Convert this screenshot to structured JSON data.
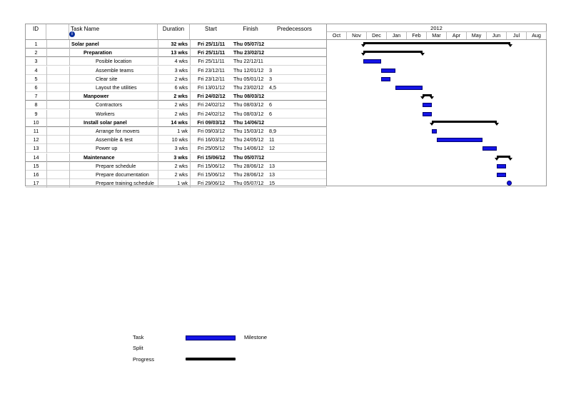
{
  "table": {
    "headers": {
      "id": "ID",
      "task_name": "Task Name",
      "duration": "Duration",
      "start": "Start",
      "finish": "Finish",
      "predecessors": "Predecessors"
    },
    "rows": [
      {
        "id": "1",
        "name": "Solar panel",
        "duration": "32 wks",
        "start": "Fri 25/11/11",
        "finish": "Thu 05/07/12",
        "pred": "",
        "summary": true,
        "indent": 0
      },
      {
        "id": "2",
        "name": "Preparation",
        "duration": "13 wks",
        "start": "Fri 25/11/11",
        "finish": "Thu 23/02/12",
        "pred": "",
        "summary": true,
        "indent": 1
      },
      {
        "id": "3",
        "name": "Posible location",
        "duration": "4 wks",
        "start": "Fri 25/11/11",
        "finish": "Thu 22/12/11",
        "pred": "",
        "summary": false,
        "indent": 2
      },
      {
        "id": "4",
        "name": "Assemble teams",
        "duration": "3 wks",
        "start": "Fri 23/12/11",
        "finish": "Thu 12/01/12",
        "pred": "3",
        "summary": false,
        "indent": 2
      },
      {
        "id": "5",
        "name": "Clear site",
        "duration": "2 wks",
        "start": "Fri 23/12/11",
        "finish": "Thu 05/01/12",
        "pred": "3",
        "summary": false,
        "indent": 2
      },
      {
        "id": "6",
        "name": "Layout the utilities",
        "duration": "6 wks",
        "start": "Fri 13/01/12",
        "finish": "Thu 23/02/12",
        "pred": "4,5",
        "summary": false,
        "indent": 2
      },
      {
        "id": "7",
        "name": "Manpower",
        "duration": "2 wks",
        "start": "Fri 24/02/12",
        "finish": "Thu 08/03/12",
        "pred": "",
        "summary": true,
        "indent": 1
      },
      {
        "id": "8",
        "name": "Contractors",
        "duration": "2 wks",
        "start": "Fri 24/02/12",
        "finish": "Thu 08/03/12",
        "pred": "6",
        "summary": false,
        "indent": 2
      },
      {
        "id": "9",
        "name": "Workers",
        "duration": "2 wks",
        "start": "Fri 24/02/12",
        "finish": "Thu 08/03/12",
        "pred": "6",
        "summary": false,
        "indent": 2
      },
      {
        "id": "10",
        "name": "Install solar panel",
        "duration": "14 wks",
        "start": "Fri 09/03/12",
        "finish": "Thu 14/06/12",
        "pred": "",
        "summary": true,
        "indent": 1
      },
      {
        "id": "11",
        "name": "Arrange for movers",
        "duration": "1 wk",
        "start": "Fri 09/03/12",
        "finish": "Thu 15/03/12",
        "pred": "8,9",
        "summary": false,
        "indent": 2
      },
      {
        "id": "12",
        "name": "Assemble & test",
        "duration": "10 wks",
        "start": "Fri 16/03/12",
        "finish": "Thu 24/05/12",
        "pred": "11",
        "summary": false,
        "indent": 2
      },
      {
        "id": "13",
        "name": "Power up",
        "duration": "3 wks",
        "start": "Fri 25/05/12",
        "finish": "Thu 14/06/12",
        "pred": "12",
        "summary": false,
        "indent": 2
      },
      {
        "id": "14",
        "name": "Maintenance",
        "duration": "3 wks",
        "start": "Fri 15/06/12",
        "finish": "Thu 05/07/12",
        "pred": "",
        "summary": true,
        "indent": 1
      },
      {
        "id": "15",
        "name": "Prepare schedule",
        "duration": "2 wks",
        "start": "Fri 15/06/12",
        "finish": "Thu 28/06/12",
        "pred": "13",
        "summary": false,
        "indent": 2
      },
      {
        "id": "16",
        "name": "Prepare documentation",
        "duration": "2 wks",
        "start": "Fri 15/06/12",
        "finish": "Thu 28/06/12",
        "pred": "13",
        "summary": false,
        "indent": 2
      },
      {
        "id": "17",
        "name": "Prepare training schedule",
        "duration": "1 wk",
        "start": "Fri 29/06/12",
        "finish": "Thu 05/07/12",
        "pred": "15",
        "summary": false,
        "indent": 2
      }
    ]
  },
  "timescale": {
    "year": "2012",
    "months": [
      "Oct",
      "Nov",
      "Dec",
      "Jan",
      "Feb",
      "Mar",
      "Apr",
      "May",
      "Jun",
      "Jul",
      "Aug"
    ]
  },
  "legend": {
    "task": "Task",
    "split": "Split",
    "progress": "Progress",
    "milestone": "Milestone"
  },
  "colors": {
    "task_bar": "#1414e6",
    "summary_bar": "#000000"
  },
  "icons": {
    "indicator_header": "info-icon"
  }
}
